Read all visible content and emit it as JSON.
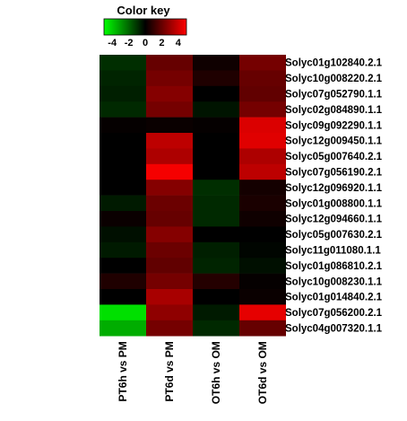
{
  "chart_data": {
    "type": "heatmap",
    "color_key": {
      "title": "Color key",
      "tick_labels": [
        "-4",
        "-2",
        "0",
        "2",
        "4"
      ],
      "range": [
        -5,
        5
      ],
      "low_color": "#00ff00",
      "mid_color": "#000000",
      "high_color": "#ff0000"
    },
    "columns": [
      "PT6h vs PM",
      "PT6d vs PM",
      "OT6h vs OM",
      "OT6d vs OM"
    ],
    "rows": [
      {
        "label": "Solyc01g102840.2.1",
        "values": [
          -0.9,
          2.0,
          0.3,
          2.3
        ]
      },
      {
        "label": "Solyc10g008220.2.1",
        "values": [
          -0.7,
          2.3,
          0.6,
          2.0
        ]
      },
      {
        "label": "Solyc07g052790.1.1",
        "values": [
          -0.6,
          2.6,
          0.0,
          1.9
        ]
      },
      {
        "label": "Solyc02g084890.1.1",
        "values": [
          -0.8,
          2.3,
          -0.4,
          2.3
        ]
      },
      {
        "label": "Solyc09g092290.1.1",
        "values": [
          0.1,
          0.2,
          0.1,
          4.3
        ]
      },
      {
        "label": "Solyc12g009450.1.1",
        "values": [
          0.0,
          3.7,
          0.0,
          4.4
        ]
      },
      {
        "label": "Solyc05g007640.2.1",
        "values": [
          0.0,
          3.4,
          0.0,
          3.4
        ]
      },
      {
        "label": "Solyc07g056190.2.1",
        "values": [
          0.0,
          4.8,
          0.0,
          3.7
        ]
      },
      {
        "label": "Solyc12g096920.1.1",
        "values": [
          0.0,
          2.6,
          -0.9,
          0.4
        ]
      },
      {
        "label": "Solyc01g008800.1.1",
        "values": [
          -0.5,
          2.1,
          -0.8,
          0.5
        ]
      },
      {
        "label": "Solyc12g094660.1.1",
        "values": [
          0.2,
          2.0,
          -0.8,
          0.3
        ]
      },
      {
        "label": "Solyc05g007630.2.1",
        "values": [
          -0.3,
          2.6,
          0.0,
          0.0
        ]
      },
      {
        "label": "Solyc11g011080.1.1",
        "values": [
          -0.5,
          2.1,
          -0.6,
          -0.1
        ]
      },
      {
        "label": "Solyc01g086810.2.1",
        "values": [
          0.0,
          1.9,
          -0.7,
          -0.3
        ]
      },
      {
        "label": "Solyc10g008230.1.1",
        "values": [
          0.6,
          2.3,
          0.7,
          0.1
        ]
      },
      {
        "label": "Solyc01g014840.2.1",
        "values": [
          0.0,
          3.3,
          0.0,
          0.2
        ]
      },
      {
        "label": "Solyc07g056200.2.1",
        "values": [
          -4.4,
          2.8,
          -0.5,
          4.5
        ]
      },
      {
        "label": "Solyc04g007320.1.1",
        "values": [
          -3.4,
          2.3,
          -0.8,
          2.0
        ]
      }
    ],
    "dendrogram": {
      "position": "left",
      "merges": [
        [
          1,
          2
        ],
        [
          3,
          4
        ],
        [
          2,
          5
        ],
        [
          7,
          8
        ],
        [
          6,
          9
        ],
        [
          5,
          10
        ],
        [
          1,
          11
        ],
        [
          10,
          11
        ],
        [
          16,
          17
        ],
        [
          12,
          13
        ],
        [
          14,
          15
        ],
        [
          19,
          20
        ],
        [
          9,
          18
        ],
        [
          21,
          22
        ],
        [
          23,
          24
        ],
        [
          -16,
          -17
        ],
        [
          -15,
          25
        ],
        [
          -18,
          26
        ],
        [
          -14,
          27
        ],
        [
          -13,
          28
        ],
        [
          -12,
          29
        ],
        [
          -11,
          30
        ],
        [
          -10,
          31
        ],
        [
          -9,
          32
        ],
        [
          -5,
          33
        ],
        [
          -6,
          34
        ]
      ]
    }
  }
}
